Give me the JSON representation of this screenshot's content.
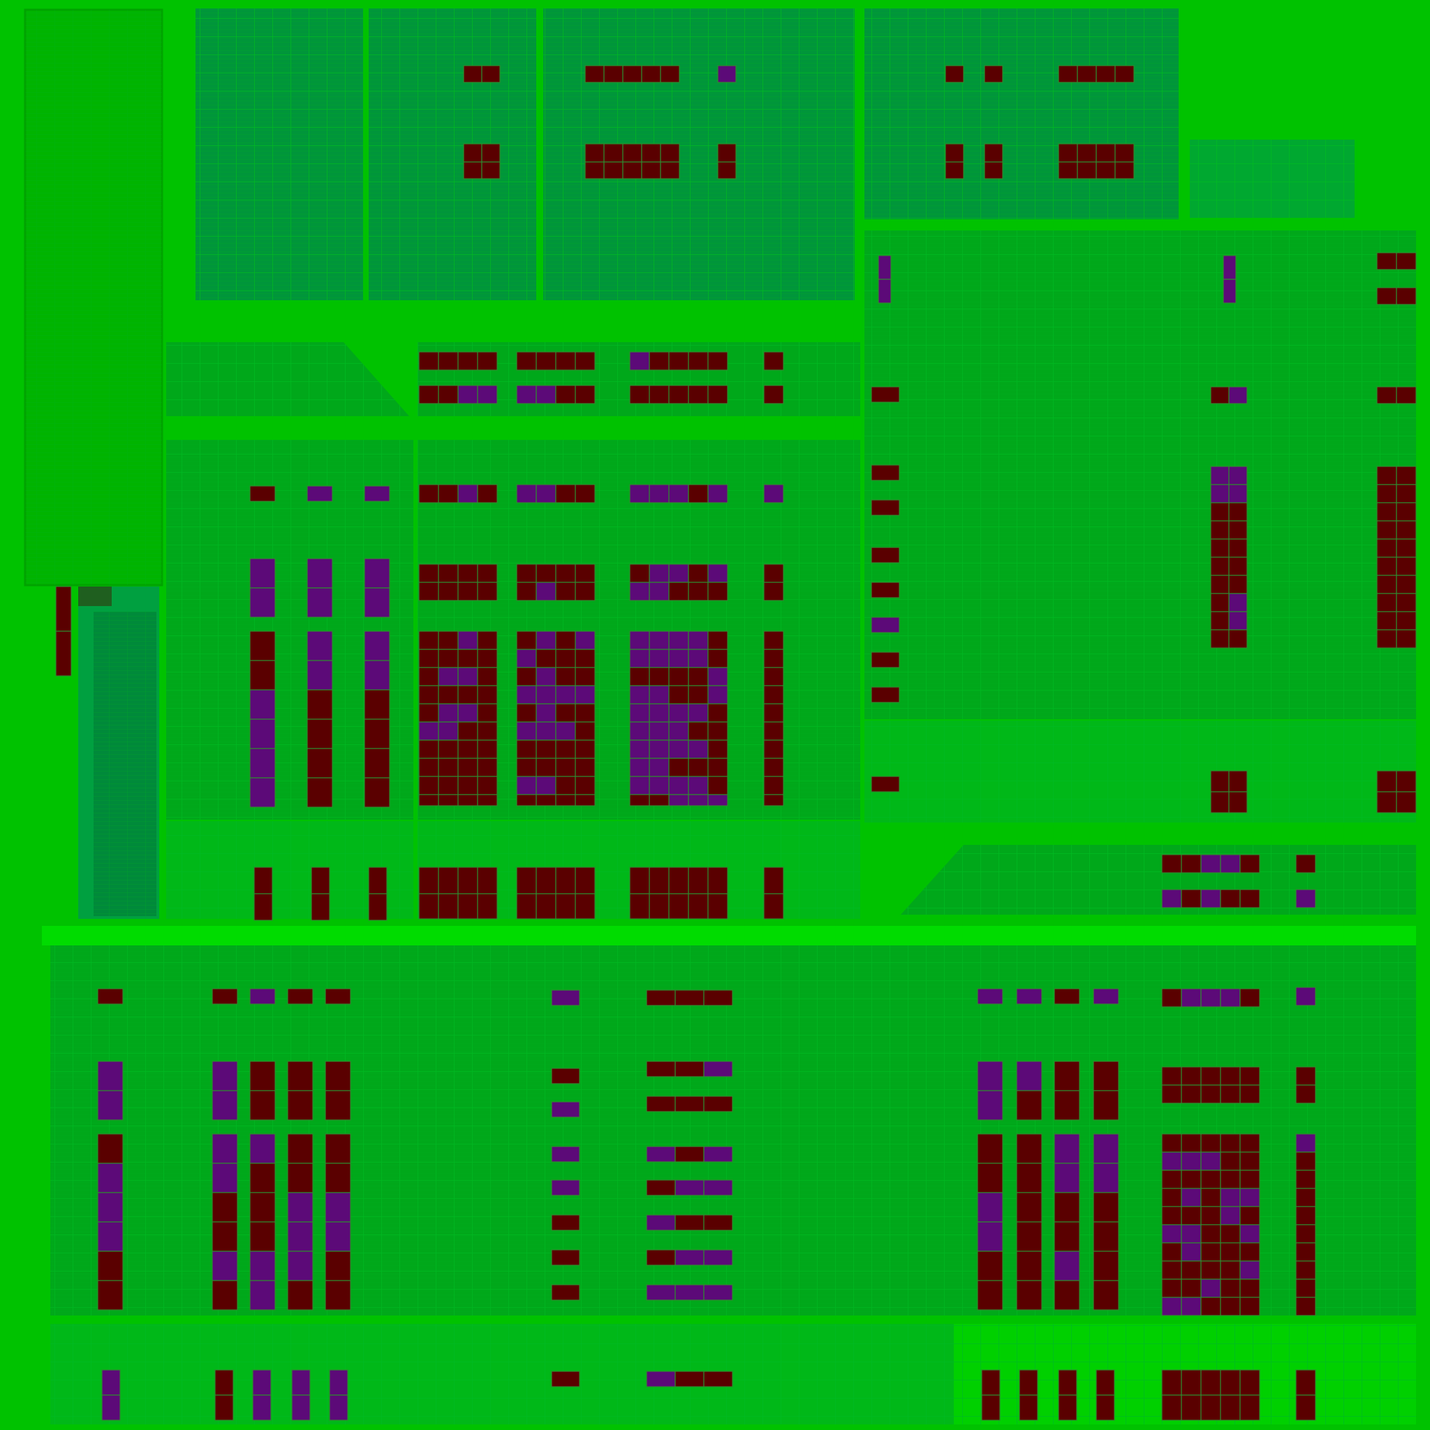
{
  "palette": {
    "background": "#00c200",
    "panel": "#009a1e",
    "panel_light": "#00a81a",
    "panel_teal": "#008a3a",
    "panel_bright": "#00b818",
    "band": "#00dc00",
    "grid": "#00bb22",
    "cell_grid": "#2f8a2f",
    "marker_dark": "#5a0000",
    "marker_purple": "#5c0a78",
    "highlight": "#00f000",
    "swatch_dark": "#1f5f1f",
    "swatch_teal": "#00a040"
  }
}
